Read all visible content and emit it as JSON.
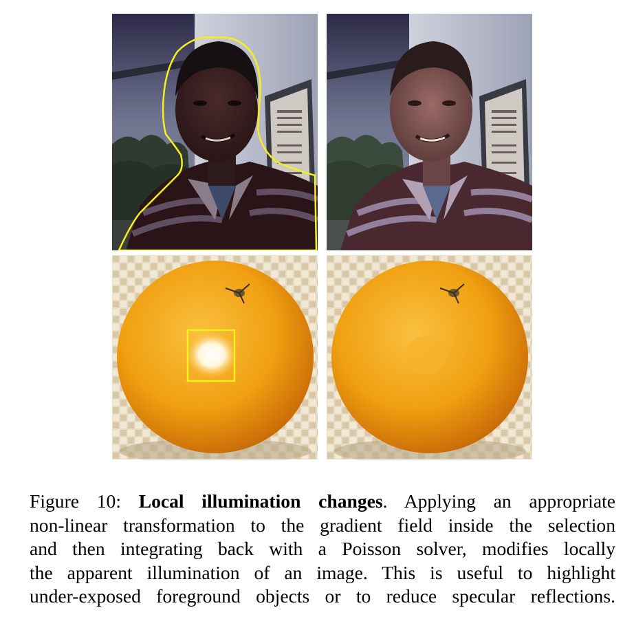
{
  "figure": {
    "label": "Figure 10:",
    "title": "Local illumination changes",
    "caption_lines": [
      {
        "pre": "",
        "bold": "Local illumination changes",
        "post": ". Applying an appropriate"
      },
      {
        "text": "non-linear transformation to the gradient field inside the selection"
      },
      {
        "text": "and then integrating back with a Poisson solver, modifies locally"
      },
      {
        "text": "the apparent illumination of an image.  This is useful to highlight"
      },
      {
        "text": "under-exposed foreground objects or to reduce specular reflections."
      }
    ]
  },
  "panels": [
    {
      "id": "face-original",
      "subject": "person-face",
      "selection": "yellow freehand outline"
    },
    {
      "id": "face-result",
      "subject": "person-face"
    },
    {
      "id": "orange-original",
      "subject": "orange",
      "selection": "yellow rectangle"
    },
    {
      "id": "orange-result",
      "subject": "orange"
    }
  ],
  "colors": {
    "selection": "#f5ef1a",
    "orange": "#f2a012",
    "background_mat": "#e8dcc6"
  }
}
